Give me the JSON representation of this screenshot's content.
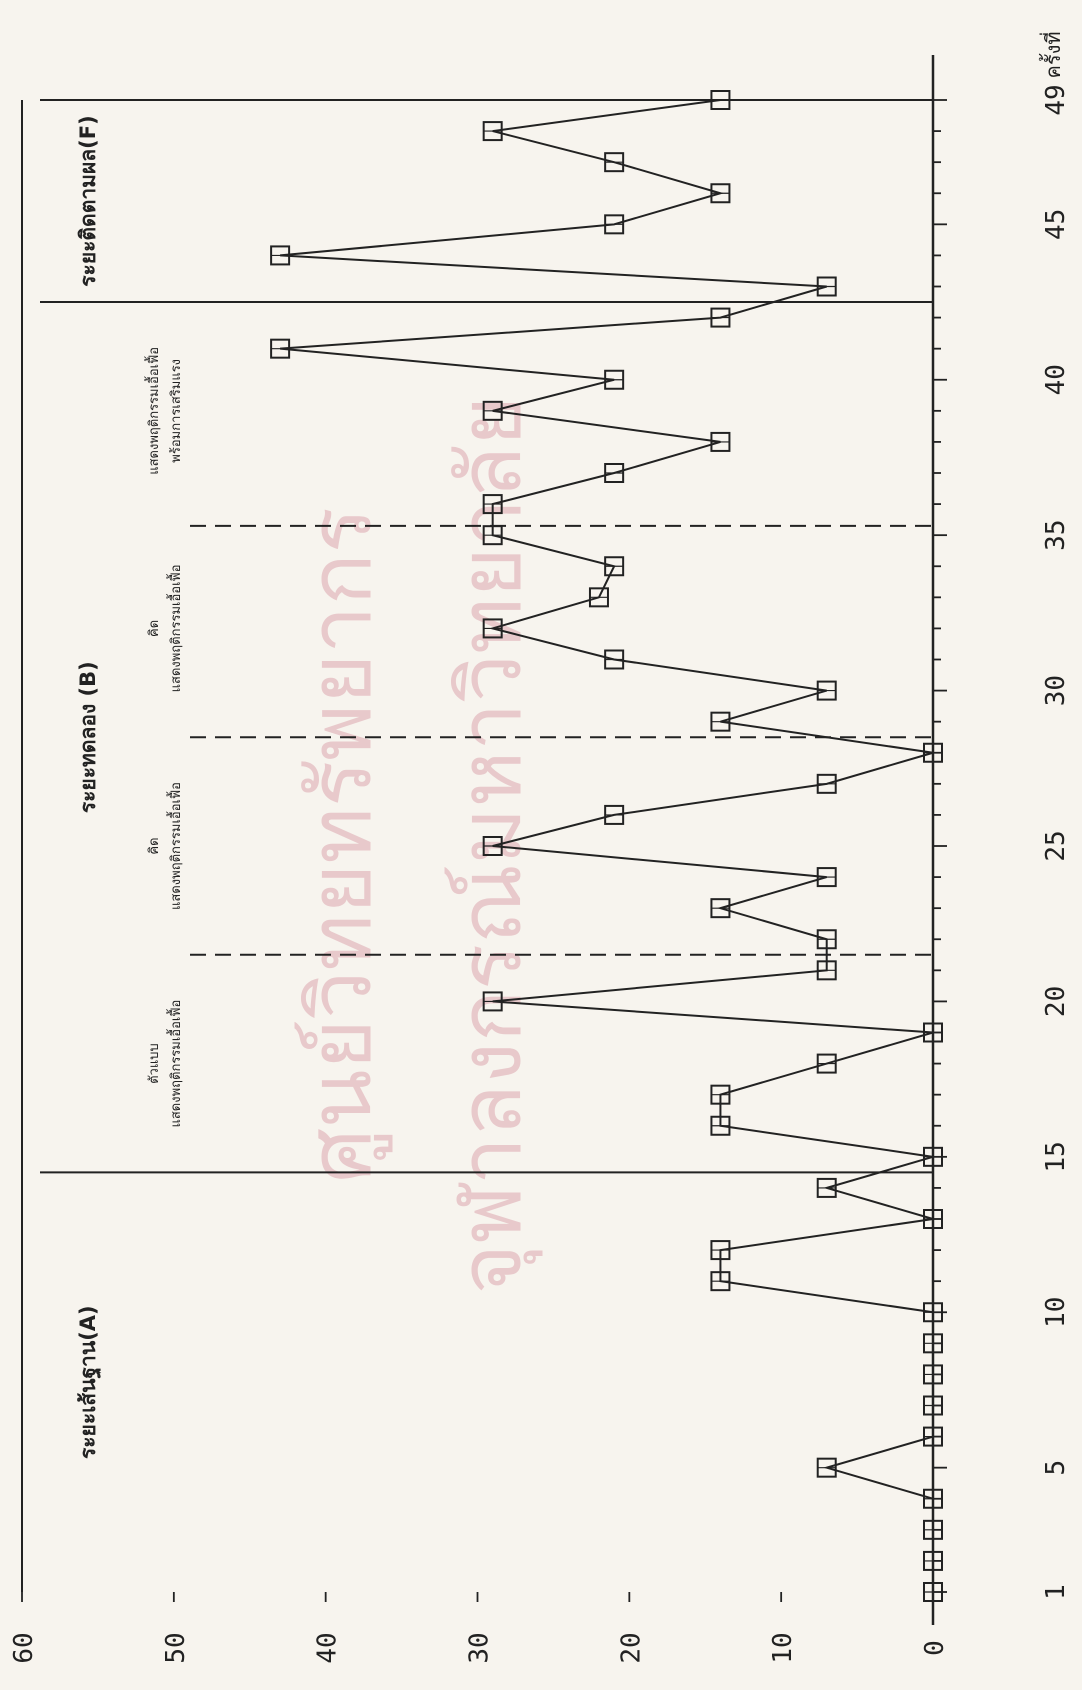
{
  "chart_data": {
    "type": "line",
    "title": "",
    "xlabel": "ครั้งที่",
    "ylabel": "",
    "xlim": [
      1,
      49
    ],
    "ylim": [
      0,
      60
    ],
    "x_ticks": [
      "1",
      "5",
      "10",
      "15",
      "20",
      "25",
      "30",
      "35",
      "40",
      "45",
      "49"
    ],
    "y_ticks": [
      "0",
      "10",
      "20",
      "30",
      "40",
      "50",
      "60"
    ],
    "grid": false,
    "marker": "open-square",
    "series": [
      {
        "name": "",
        "x": [
          1,
          2,
          3,
          4,
          5,
          6,
          7,
          8,
          9,
          10,
          11,
          12,
          13,
          14,
          15,
          16,
          17,
          18,
          19,
          20,
          21,
          22,
          23,
          24,
          25,
          26,
          27,
          28,
          29,
          30,
          31,
          32,
          33,
          34,
          35,
          36,
          37,
          38,
          39,
          40,
          41,
          42,
          43,
          44,
          45,
          46,
          47,
          48,
          49
        ],
        "y": [
          0,
          0,
          0,
          0,
          7,
          0,
          0,
          0,
          0,
          0,
          14,
          14,
          0,
          7,
          0,
          14,
          14,
          7,
          0,
          29,
          7,
          7,
          14,
          7,
          29,
          21,
          7,
          0,
          14,
          7,
          21,
          29,
          22,
          21,
          29,
          29,
          21,
          14,
          29,
          21,
          43,
          14,
          7,
          43,
          21,
          14,
          21,
          29,
          14
        ]
      }
    ],
    "phases": [
      {
        "label": "ระยะเส้นฐาน(A)",
        "start": 1,
        "end": 14.5
      },
      {
        "label": "ระยะทดลอง (B)",
        "start": 14.5,
        "end": 42.5
      },
      {
        "label": "ระยะติดตามผล(F)",
        "start": 42.5,
        "end": 49
      }
    ],
    "phase_lines": [
      14.5,
      42.5,
      49
    ],
    "subphase_lines": [
      21.5,
      28.5,
      35.3
    ],
    "subphase_notes": [
      {
        "lines": [
          "ตัวแบบ",
          "แสดงพฤติกรรมเอื้อเฟื้อ"
        ],
        "center": 18
      },
      {
        "lines": [
          "คิด",
          "แสดงพฤติกรรมเอื้อเฟื้อ"
        ],
        "center": 25
      },
      {
        "lines": [
          "คิด",
          "แสดงพฤติกรรมเอื้อเฟื้อ"
        ],
        "center": 32
      },
      {
        "lines": [
          "แสดงพฤติกรรมเอื้อเฟื้อ",
          "พร้อมการเสริมแรง"
        ],
        "center": 39
      }
    ],
    "watermark": [
      "ศูนย์วิทยทรัพยากร",
      "จุฬาลงกรณ์มหาวิทยาลัย"
    ]
  }
}
